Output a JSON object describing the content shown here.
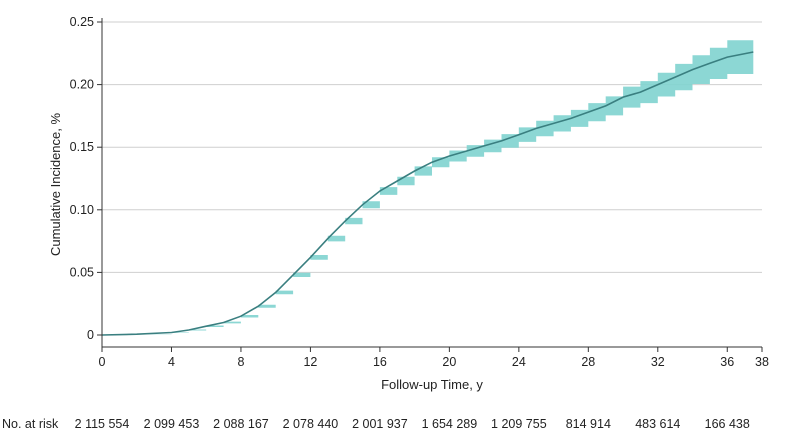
{
  "chart_data": {
    "type": "line",
    "title": "",
    "xlabel": "Follow-up Time, y",
    "ylabel": "Cumulative Incidence, %",
    "xlim": [
      0,
      38
    ],
    "ylim": [
      0,
      0.25
    ],
    "grid": "horizontal",
    "xticks": [
      {
        "value": 0,
        "label": "0"
      },
      {
        "value": 4,
        "label": "4"
      },
      {
        "value": 8,
        "label": "8"
      },
      {
        "value": 12,
        "label": "12"
      },
      {
        "value": 16,
        "label": "16"
      },
      {
        "value": 20,
        "label": "20"
      },
      {
        "value": 24,
        "label": "24"
      },
      {
        "value": 28,
        "label": "28"
      },
      {
        "value": 32,
        "label": "32"
      },
      {
        "value": 36,
        "label": "36"
      },
      {
        "value": 38,
        "label": "38"
      }
    ],
    "yticks": [
      {
        "value": 0,
        "label": "0"
      },
      {
        "value": 0.05,
        "label": "0.05"
      },
      {
        "value": 0.1,
        "label": "0.10"
      },
      {
        "value": 0.15,
        "label": "0.15"
      },
      {
        "value": 0.2,
        "label": "0.20"
      },
      {
        "value": 0.25,
        "label": "0.25"
      }
    ],
    "series": [
      {
        "x": [
          0,
          2,
          4,
          5,
          6,
          7,
          8,
          9,
          10,
          11,
          12,
          13,
          14,
          15,
          16,
          17,
          18,
          19,
          20,
          21,
          22,
          23,
          24,
          25,
          26,
          27,
          28,
          29,
          30,
          31,
          32,
          33,
          34,
          35,
          36,
          37.5
        ],
        "y": [
          0,
          0.0006,
          0.002,
          0.004,
          0.007,
          0.01,
          0.015,
          0.023,
          0.034,
          0.048,
          0.062,
          0.077,
          0.091,
          0.104,
          0.115,
          0.123,
          0.131,
          0.138,
          0.143,
          0.147,
          0.151,
          0.155,
          0.16,
          0.165,
          0.169,
          0.173,
          0.178,
          0.183,
          0.19,
          0.194,
          0.2,
          0.206,
          0.212,
          0.217,
          0.222,
          0.226
        ],
        "ci_lower": [
          0,
          0.0005,
          0.0018,
          0.0036,
          0.0064,
          0.0093,
          0.014,
          0.0218,
          0.0325,
          0.0463,
          0.0601,
          0.0748,
          0.0885,
          0.1012,
          0.1119,
          0.1196,
          0.1273,
          0.134,
          0.1386,
          0.1423,
          0.1459,
          0.1495,
          0.1542,
          0.1588,
          0.1625,
          0.1662,
          0.1708,
          0.1754,
          0.1816,
          0.1852,
          0.1905,
          0.1955,
          0.2005,
          0.2045,
          0.2085,
          0.217
        ],
        "ci_upper": [
          0,
          0.0007,
          0.0022,
          0.0044,
          0.0076,
          0.0107,
          0.016,
          0.0242,
          0.0355,
          0.0497,
          0.0639,
          0.0792,
          0.0935,
          0.1068,
          0.1181,
          0.1264,
          0.1347,
          0.142,
          0.1474,
          0.1517,
          0.1561,
          0.1605,
          0.1658,
          0.1712,
          0.1755,
          0.1798,
          0.1852,
          0.1906,
          0.1984,
          0.2028,
          0.2095,
          0.2165,
          0.2235,
          0.2295,
          0.2355,
          0.235
        ],
        "color": "#3a7f80",
        "ci_color": "#7fd3cf"
      }
    ],
    "risk_table": {
      "label": "No. at risk",
      "counts": [
        {
          "x": 0,
          "text": "2 115 554"
        },
        {
          "x": 4,
          "text": "2 099 453"
        },
        {
          "x": 8,
          "text": "2 088 167"
        },
        {
          "x": 12,
          "text": "2 078 440"
        },
        {
          "x": 16,
          "text": "2 001 937"
        },
        {
          "x": 20,
          "text": "1 654 289"
        },
        {
          "x": 24,
          "text": "1 209 755"
        },
        {
          "x": 28,
          "text": "814 914"
        },
        {
          "x": 32,
          "text": "483 614"
        },
        {
          "x": 36,
          "text": "166 438"
        }
      ]
    }
  }
}
